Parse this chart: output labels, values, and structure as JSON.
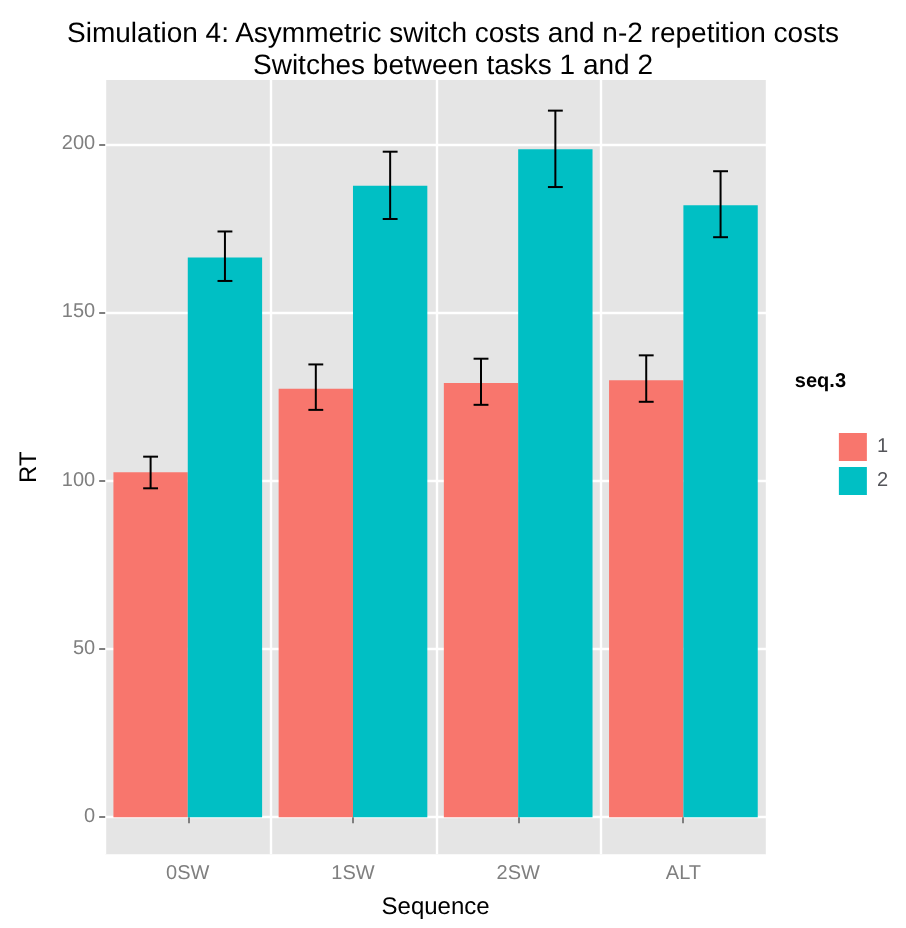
{
  "chart_data": {
    "type": "bar",
    "title": "Simulation 4: Asymmetric switch costs and n-2 repetition costs",
    "subtitle": "Switches between tasks 1 and 2",
    "xlabel": "Sequence",
    "ylabel": "RT",
    "legend_title": "seq.3",
    "categories": [
      "0SW",
      "1SW",
      "2SW",
      "ALT"
    ],
    "series": [
      {
        "name": "1",
        "color": "#f8766d",
        "values": [
          102.5,
          127.3,
          129,
          129.8
        ],
        "errors": [
          [
            97.7,
            107.1
          ],
          [
            121,
            134.5
          ],
          [
            122.5,
            136.2
          ],
          [
            123.4,
            137.2
          ]
        ]
      },
      {
        "name": "2",
        "color": "#00bfc4",
        "values": [
          166.3,
          187.6,
          198.4,
          181.8
        ],
        "errors": [
          [
            159.3,
            174
          ],
          [
            177.7,
            197.7
          ],
          [
            187.2,
            209.9
          ],
          [
            172.3,
            191.9
          ]
        ]
      }
    ],
    "ylim": [
      -11,
      219
    ],
    "yticks": [
      0,
      50,
      100,
      150,
      200
    ],
    "grid": true,
    "legend": "right"
  }
}
